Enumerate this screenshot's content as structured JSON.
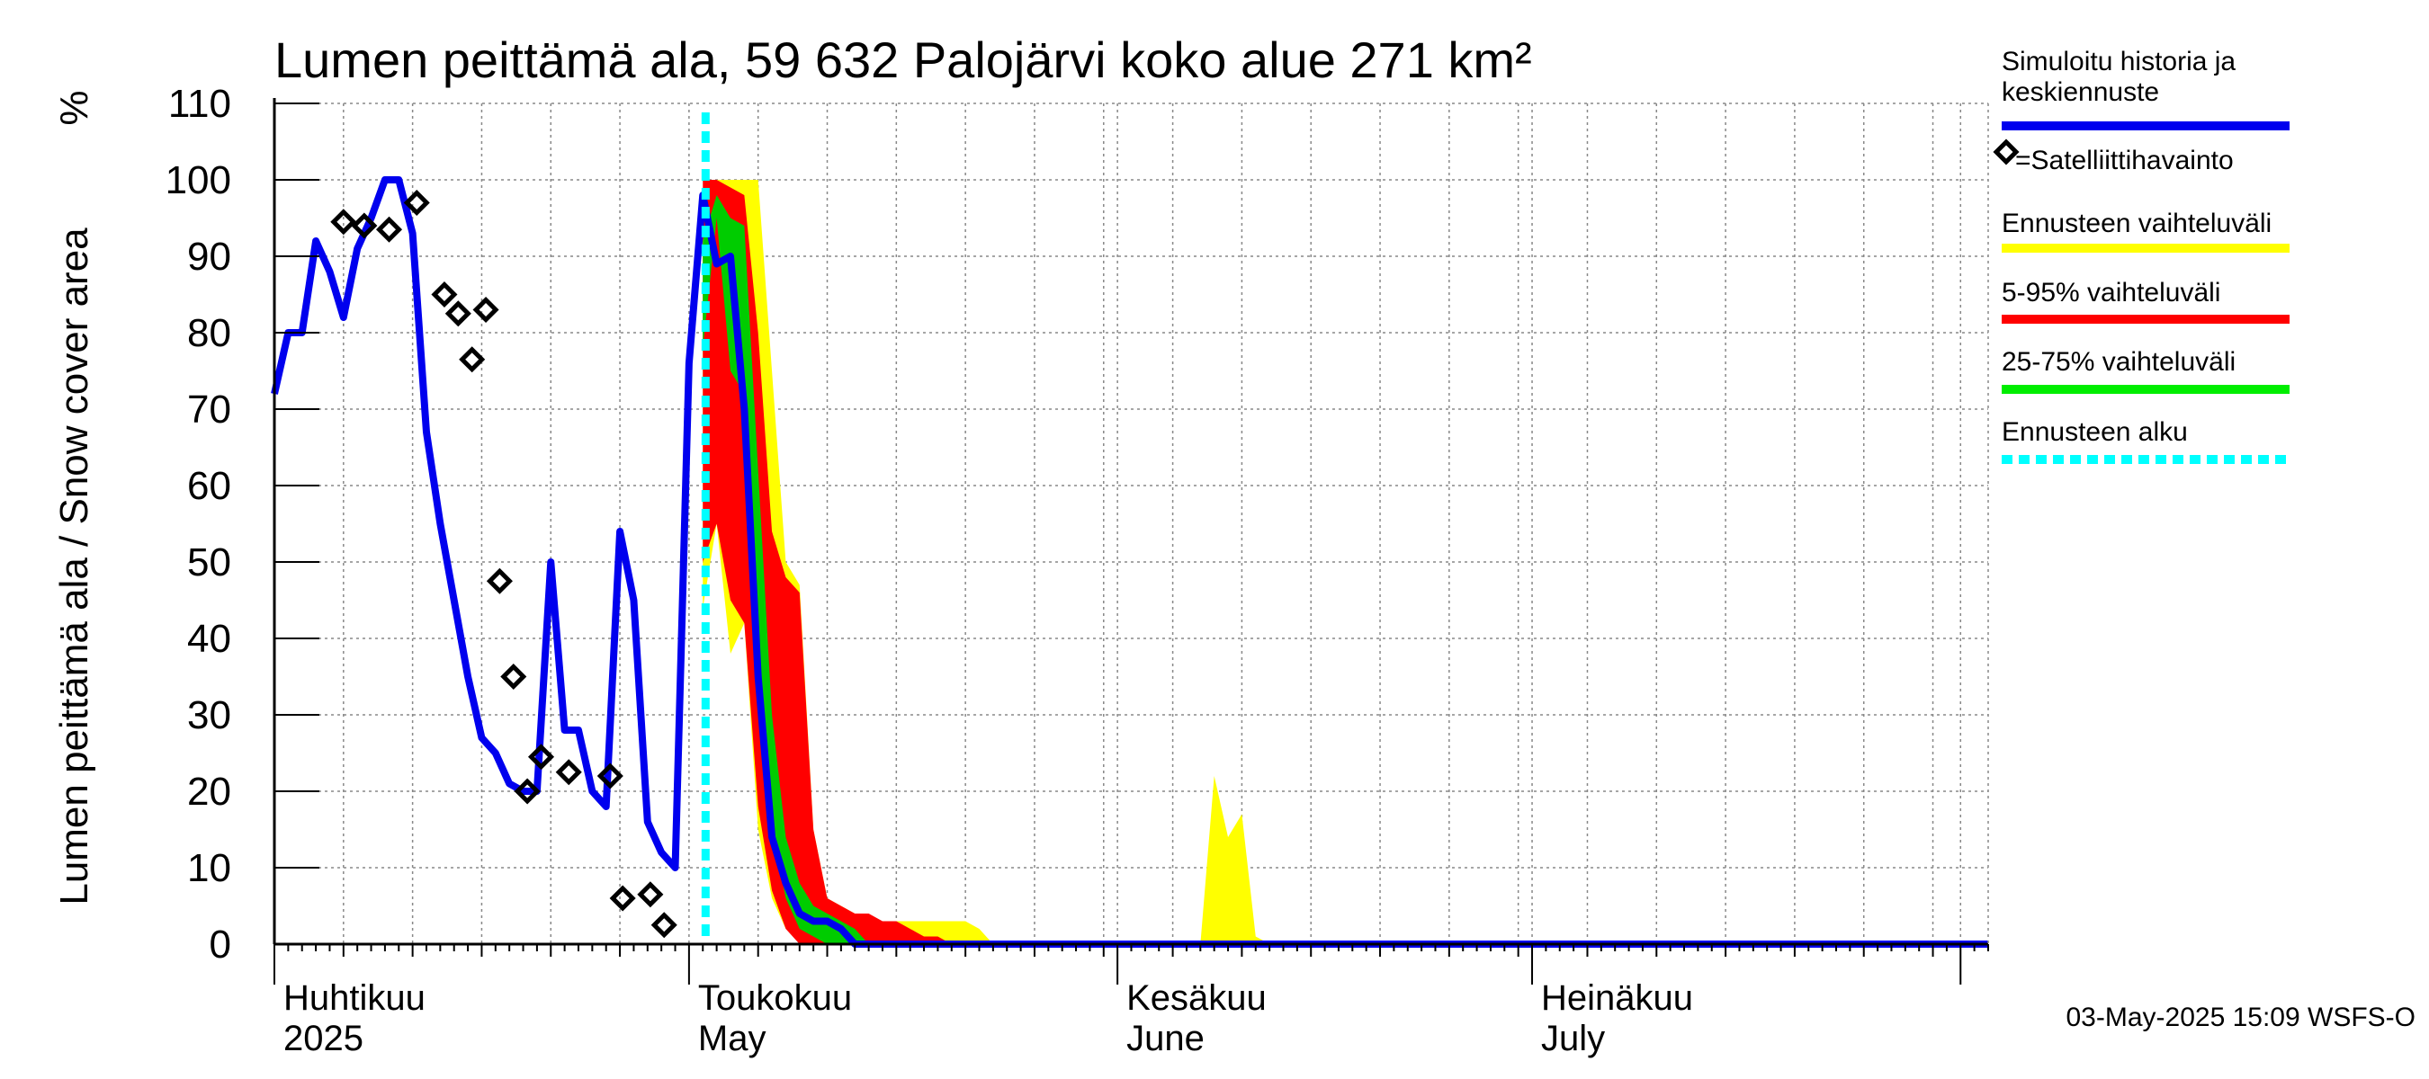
{
  "chart_data": {
    "type": "area",
    "title": "Lumen peittämä ala, 59 632 Palojärvi koko alue 271 km²",
    "ylabel": "Lumen peittämä ala / Snow cover area",
    "yunit": "%",
    "ylim": [
      0,
      110
    ],
    "yticks": [
      0,
      10,
      20,
      30,
      40,
      50,
      60,
      70,
      80,
      90,
      100,
      110
    ],
    "xlim_days": [
      0,
      124
    ],
    "grid": true,
    "months": [
      {
        "label": "Huhtikuu",
        "sub": "2025",
        "day": 0,
        "end": 30
      },
      {
        "label": "Toukokuu",
        "sub": "May",
        "day": 30,
        "end": 61
      },
      {
        "label": "Kesäkuu",
        "sub": "June",
        "day": 61,
        "end": 91
      },
      {
        "label": "Heinäkuu",
        "sub": "July",
        "day": 91,
        "end": 122
      }
    ],
    "forecast_start_day": 31.2,
    "simulated": {
      "name": "Simuloitu historia ja keskiennuste",
      "color": "#0000ee",
      "x": [
        0,
        1,
        2,
        3,
        4,
        5,
        6,
        7,
        8,
        9,
        10,
        11,
        12,
        13,
        14,
        15,
        16,
        17,
        18,
        19,
        20,
        21,
        22,
        23,
        24,
        25,
        26,
        27,
        28,
        29,
        30,
        31,
        32,
        33,
        34,
        35,
        36,
        37,
        38,
        39,
        40,
        41,
        42,
        43,
        44,
        45,
        124
      ],
      "y": [
        72,
        80,
        80,
        92,
        88,
        82,
        91,
        95,
        100,
        100,
        93,
        67,
        55,
        45,
        35,
        27,
        25,
        21,
        20,
        20,
        50,
        28,
        28,
        20,
        18,
        54,
        45,
        16,
        12,
        10,
        76,
        98,
        89,
        90,
        70,
        35,
        14,
        8,
        4,
        3,
        3,
        2,
        0,
        0,
        0,
        0,
        0
      ]
    },
    "satellite": {
      "name": "=Satelliittihavainto",
      "x": [
        5,
        6.5,
        8.3,
        10.3,
        12.3,
        13.3,
        14.3,
        15.3,
        16.3,
        17.3,
        18.3,
        19.3,
        21.3,
        24.3,
        25.2,
        27.2,
        28.2
      ],
      "y": [
        94.5,
        94,
        93.5,
        97,
        85,
        82.5,
        76.5,
        83,
        47.5,
        35,
        20,
        24.5,
        22.5,
        22,
        6,
        6.5,
        2.5
      ]
    },
    "bands": [
      {
        "name": "Ennusteen vaihteluväli",
        "color": "#ffff00",
        "x": [
          31,
          32,
          33,
          34,
          35,
          36,
          37,
          38,
          39,
          40,
          41,
          42,
          43,
          44,
          45,
          46,
          47,
          48,
          49,
          50,
          51,
          52
        ],
        "lower": [
          44,
          55,
          38,
          42,
          15,
          6,
          2,
          1,
          0,
          0,
          0,
          0,
          0,
          0,
          0,
          0,
          0,
          0,
          0,
          0,
          0,
          0
        ],
        "upper": [
          95,
          100,
          100,
          100,
          100,
          75,
          50,
          47,
          15,
          6,
          5,
          4,
          3,
          3,
          3,
          3,
          3,
          3,
          3,
          3,
          2,
          0
        ]
      },
      {
        "name": "Ennusteen vaihteluväli (kesäkuu)",
        "color": "#ffff00",
        "x": [
          67,
          68,
          69,
          70,
          71,
          72
        ],
        "lower": [
          0,
          0,
          0,
          0,
          0,
          0
        ],
        "upper": [
          0,
          22,
          14,
          17,
          1,
          0
        ]
      },
      {
        "name": "5-95% vaihteluväli",
        "color": "#ff0000",
        "x": [
          31,
          32,
          33,
          34,
          35,
          36,
          37,
          38,
          39,
          40,
          41,
          42,
          43,
          44,
          45,
          46,
          47,
          48,
          49
        ],
        "lower": [
          50,
          55,
          45,
          42,
          18,
          7,
          2,
          0,
          0,
          0,
          0,
          0,
          0,
          0,
          0,
          0,
          0,
          0,
          0
        ],
        "upper": [
          100,
          100,
          99,
          98,
          80,
          54,
          48,
          46,
          15,
          6,
          5,
          4,
          4,
          3,
          3,
          2,
          1,
          1,
          0
        ]
      },
      {
        "name": "25-75% vaihteluväli",
        "color": "#00cc00",
        "x": [
          31,
          32,
          33,
          34,
          35,
          36,
          37,
          38,
          39,
          40,
          41,
          42,
          43
        ],
        "lower": [
          78,
          95,
          75,
          72,
          40,
          15,
          6,
          2,
          1,
          0,
          0,
          0,
          0
        ],
        "upper": [
          92,
          98,
          95,
          94,
          62,
          30,
          14,
          8,
          5,
          4,
          3,
          2,
          0
        ]
      }
    ],
    "legend": [
      {
        "label": "Simuloitu historia ja keskiennuste",
        "style": "line",
        "color": "#0000ee"
      },
      {
        "label": "=Satelliittihavainto",
        "style": "diamond",
        "color": "#000000"
      },
      {
        "label": "Ennusteen vaihteluväli",
        "style": "line",
        "color": "#ffff00"
      },
      {
        "label": "5-95% vaihteluväli",
        "style": "line",
        "color": "#ff0000"
      },
      {
        "label": "25-75% vaihteluväli",
        "style": "line",
        "color": "#00ee00"
      },
      {
        "label": "Ennusteen alku",
        "style": "dashed",
        "color": "#00ffff"
      }
    ],
    "footer": "03-May-2025 15:09 WSFS-O"
  }
}
